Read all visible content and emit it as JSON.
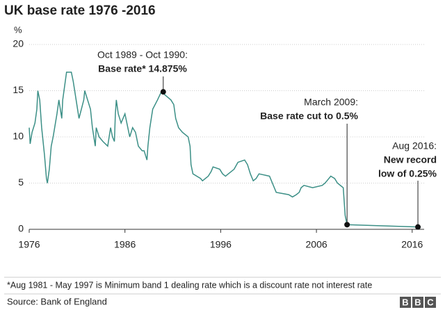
{
  "chart_data": {
    "type": "line",
    "title": "UK base rate 1976 -2016",
    "y_unit": "%",
    "xlim": [
      1976,
      2017.25
    ],
    "ylim": [
      0,
      20
    ],
    "xticks": [
      1976,
      1986,
      1996,
      2006,
      2016
    ],
    "yticks": [
      0,
      5,
      10,
      15,
      20
    ],
    "grid": true,
    "series": [
      {
        "color": "#3b8f86",
        "x": [
          1976.0,
          1976.1,
          1976.3,
          1976.6,
          1976.8,
          1976.9,
          1977.1,
          1977.3,
          1977.6,
          1977.8,
          1977.9,
          1978.1,
          1978.3,
          1978.5,
          1978.9,
          1979.1,
          1979.4,
          1979.5,
          1979.9,
          1980.4,
          1980.6,
          1980.9,
          1981.2,
          1981.7,
          1981.8,
          1982.1,
          1982.4,
          1982.6,
          1982.9,
          1983.0,
          1983.3,
          1983.7,
          1984.2,
          1984.5,
          1984.7,
          1984.9,
          1985.0,
          1985.1,
          1985.3,
          1985.6,
          1986.0,
          1986.3,
          1986.5,
          1986.8,
          1987.1,
          1987.4,
          1987.8,
          1988.0,
          1988.3,
          1988.4,
          1988.6,
          1988.9,
          1989.4,
          1989.8,
          1990.8,
          1991.1,
          1991.3,
          1991.6,
          1992.0,
          1992.6,
          1992.8,
          1992.9,
          1993.1,
          1993.9,
          1994.1,
          1994.7,
          1995.0,
          1995.2,
          1995.9,
          1996.2,
          1996.5,
          1996.8,
          1997.4,
          1997.8,
          1998.5,
          1998.8,
          1999.1,
          1999.4,
          1999.7,
          2000.0,
          2001.1,
          2001.4,
          2001.8,
          2003.1,
          2003.5,
          2003.9,
          2004.2,
          2004.4,
          2004.7,
          2005.6,
          2006.6,
          2006.9,
          2007.1,
          2007.5,
          2007.9,
          2008.2,
          2008.8,
          2008.9,
          2009.0,
          2009.2,
          2016.6,
          2016.9
        ],
        "values": [
          11,
          9.25,
          10.5,
          11.5,
          13,
          15,
          14,
          11,
          8,
          5.5,
          5,
          6.5,
          9,
          10,
          12.5,
          14,
          12,
          14,
          17,
          17,
          16,
          14,
          12,
          14,
          15,
          14,
          13,
          11,
          9,
          11,
          10,
          9.5,
          9,
          11,
          10,
          9.5,
          12.5,
          14,
          12.5,
          11.5,
          12.5,
          11,
          10,
          11,
          10.5,
          9,
          8.5,
          8.5,
          7.5,
          9,
          11,
          13,
          14,
          14.875,
          14,
          13.5,
          12,
          11,
          10.5,
          10,
          9,
          7,
          6,
          5.5,
          5.25,
          5.75,
          6.25,
          6.75,
          6.5,
          6,
          5.75,
          6,
          6.5,
          7.25,
          7.5,
          7,
          6,
          5.25,
          5.5,
          6,
          5.75,
          5,
          4,
          3.75,
          3.5,
          3.75,
          4,
          4.5,
          4.75,
          4.5,
          4.75,
          5,
          5.25,
          5.75,
          5.5,
          5,
          4.5,
          3,
          1.5,
          0.5,
          0.25,
          0.25
        ]
      }
    ],
    "annotations": [
      {
        "x": 1990,
        "y": 14.875,
        "lines": [
          "Oct 1989 - Oct 1990:",
          "Base rate* 14.875%"
        ]
      },
      {
        "x": 2009.2,
        "y": 0.5,
        "lines": [
          "March 2009:",
          "Base rate cut to 0.5%"
        ]
      },
      {
        "x": 2016.6,
        "y": 0.25,
        "lines": [
          "Aug 2016:",
          "New record",
          "low of 0.25%"
        ]
      }
    ],
    "footnote": "*Aug 1981 - May 1997 is Minimum band 1 dealing rate which is a discount rate not interest rate",
    "source": "Source: Bank of England",
    "logo": [
      "B",
      "B",
      "C"
    ]
  }
}
